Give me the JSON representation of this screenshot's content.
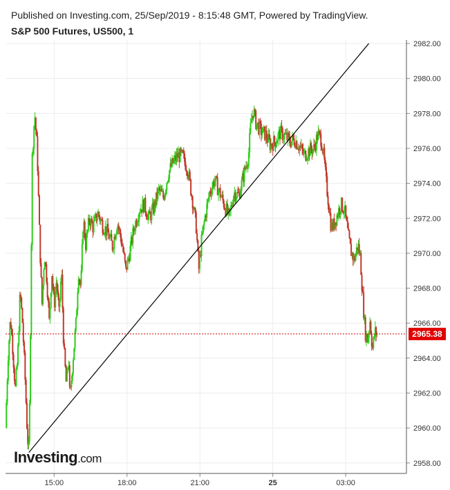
{
  "header": {
    "published": "Published on Investing.com, 25/Sep/2019 - 8:15:48 GMT, Powered by TradingView.",
    "title": "S&P 500 Futures, US500, 1"
  },
  "logo": {
    "main": "Investing",
    "suffix": ".com"
  },
  "colors": {
    "up": "#2ecc1a",
    "down": "#c0392b",
    "trendline": "#000000",
    "price_line": "#cc0000",
    "price_badge": "#e00000",
    "grid": "#ececec"
  },
  "chart_data": {
    "type": "candlestick",
    "title": "S&P 500 Futures, US500, 1",
    "current_price": 2965.38,
    "current_price_label": "2965.38",
    "ylim": [
      2957.4,
      2982.2
    ],
    "y_ticks": [
      2958,
      2960,
      2962,
      2964,
      2966,
      2968,
      2970,
      2972,
      2974,
      2976,
      2978,
      2980,
      2982
    ],
    "y_tick_labels": [
      "2958.00",
      "2960.00",
      "2962.00",
      "2964.00",
      "2966.00",
      "2968.00",
      "2970.00",
      "2972.00",
      "2974.00",
      "2976.00",
      "2978.00",
      "2980.00",
      "2982.00"
    ],
    "x_ticks": [
      "15:00",
      "18:00",
      "21:00",
      "25",
      "03:00"
    ],
    "x_tick_hours": [
      15,
      18,
      21,
      24,
      27
    ],
    "xlim_hours": [
      13.0,
      29.5
    ],
    "grid": true,
    "price_path": [
      [
        13.0,
        2960.0
      ],
      [
        13.1,
        2964.0
      ],
      [
        13.2,
        2966.3
      ],
      [
        13.3,
        2964.5
      ],
      [
        13.4,
        2962.2
      ],
      [
        13.5,
        2964.0
      ],
      [
        13.6,
        2967.8
      ],
      [
        13.7,
        2966.0
      ],
      [
        13.8,
        2963.0
      ],
      [
        13.9,
        2959.5
      ],
      [
        13.96,
        2958.7
      ],
      [
        14.0,
        2962.0
      ],
      [
        14.05,
        2969.0
      ],
      [
        14.1,
        2975.5
      ],
      [
        14.2,
        2978.0
      ],
      [
        14.3,
        2976.0
      ],
      [
        14.4,
        2971.0
      ],
      [
        14.5,
        2967.0
      ],
      [
        14.6,
        2970.0
      ],
      [
        14.7,
        2968.5
      ],
      [
        14.8,
        2966.0
      ],
      [
        14.9,
        2969.0
      ],
      [
        15.0,
        2967.0
      ],
      [
        15.1,
        2968.5
      ],
      [
        15.2,
        2966.5
      ],
      [
        15.3,
        2969.0
      ],
      [
        15.4,
        2964.5
      ],
      [
        15.5,
        2962.5
      ],
      [
        15.6,
        2964.0
      ],
      [
        15.65,
        2961.5
      ],
      [
        15.75,
        2963.5
      ],
      [
        15.9,
        2966.0
      ],
      [
        16.0,
        2969.0
      ],
      [
        16.1,
        2968.0
      ],
      [
        16.2,
        2972.0
      ],
      [
        16.3,
        2970.5
      ],
      [
        16.45,
        2972.0
      ],
      [
        16.6,
        2971.5
      ],
      [
        16.8,
        2972.3
      ],
      [
        17.0,
        2971.6
      ],
      [
        17.2,
        2971.2
      ],
      [
        17.4,
        2970.4
      ],
      [
        17.6,
        2971.8
      ],
      [
        17.8,
        2970.5
      ],
      [
        17.95,
        2969.0
      ],
      [
        18.1,
        2970.0
      ],
      [
        18.3,
        2971.5
      ],
      [
        18.5,
        2972.5
      ],
      [
        18.7,
        2972.8
      ],
      [
        18.9,
        2972.0
      ],
      [
        19.1,
        2972.6
      ],
      [
        19.3,
        2973.6
      ],
      [
        19.5,
        2973.2
      ],
      [
        19.7,
        2974.6
      ],
      [
        19.9,
        2975.2
      ],
      [
        20.1,
        2975.6
      ],
      [
        20.3,
        2975.5
      ],
      [
        20.5,
        2974.8
      ],
      [
        20.7,
        2973.0
      ],
      [
        20.85,
        2971.5
      ],
      [
        20.95,
        2969.0
      ],
      [
        21.05,
        2970.5
      ],
      [
        21.2,
        2972.0
      ],
      [
        21.4,
        2973.5
      ],
      [
        21.6,
        2974.2
      ],
      [
        21.8,
        2973.5
      ],
      [
        22.0,
        2972.8
      ],
      [
        22.2,
        2972.0
      ],
      [
        22.4,
        2973.5
      ],
      [
        22.6,
        2973.3
      ],
      [
        22.8,
        2974.5
      ],
      [
        23.0,
        2975.6
      ],
      [
        23.1,
        2977.5
      ],
      [
        23.2,
        2978.2
      ],
      [
        23.3,
        2977.5
      ],
      [
        23.5,
        2977.0
      ],
      [
        23.7,
        2976.8
      ],
      [
        23.9,
        2976.2
      ],
      [
        24.1,
        2976.4
      ],
      [
        24.3,
        2976.9
      ],
      [
        24.5,
        2976.7
      ],
      [
        24.7,
        2976.4
      ],
      [
        24.9,
        2976.5
      ],
      [
        25.1,
        2976.1
      ],
      [
        25.3,
        2975.6
      ],
      [
        25.5,
        2975.9
      ],
      [
        25.7,
        2976.0
      ],
      [
        25.85,
        2976.8
      ],
      [
        26.0,
        2976.5
      ],
      [
        26.1,
        2975.5
      ],
      [
        26.2,
        2974.0
      ],
      [
        26.3,
        2972.8
      ],
      [
        26.4,
        2971.5
      ],
      [
        26.5,
        2971.6
      ],
      [
        26.65,
        2972.2
      ],
      [
        26.8,
        2972.8
      ],
      [
        26.95,
        2972.5
      ],
      [
        27.1,
        2971.0
      ],
      [
        27.2,
        2970.2
      ],
      [
        27.35,
        2969.6
      ],
      [
        27.5,
        2970.5
      ],
      [
        27.6,
        2969.8
      ],
      [
        27.7,
        2967.5
      ],
      [
        27.8,
        2965.5
      ],
      [
        27.9,
        2965.0
      ],
      [
        28.0,
        2966.2
      ],
      [
        28.1,
        2964.5
      ],
      [
        28.2,
        2965.5
      ],
      [
        28.3,
        2965.38
      ]
    ],
    "trendline": {
      "start": [
        13.96,
        2958.6
      ],
      "end": [
        27.95,
        2982.0
      ]
    }
  }
}
